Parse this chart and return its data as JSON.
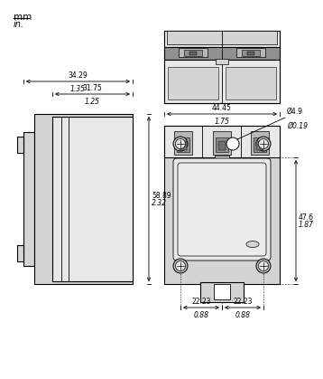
{
  "bg_color": "#ffffff",
  "line_color": "#000000",
  "fill_light": "#e8e8e8",
  "fill_mid": "#d4d4d4",
  "fill_dark": "#b8b8b8",
  "fill_darker": "#909090",
  "title_mm": "mm",
  "title_in": "in.",
  "dim_34_29": "34.29",
  "dim_1_35": "1.35",
  "dim_31_75": "31.75",
  "dim_1_25": "1.25",
  "dim_58_89": "58.89",
  "dim_2_32": "2.32",
  "dim_44_45": "44.45",
  "dim_1_75": "1.75",
  "dim_d4_9": "Ø4.9",
  "dim_d0_19": "Ø0.19",
  "dim_47_6": "47.6",
  "dim_1_87": "1.87",
  "dim_22_23a": "22.23",
  "dim_22_23b": "22.23",
  "dim_0_88a": "0.88",
  "dim_0_88b": "0.88"
}
